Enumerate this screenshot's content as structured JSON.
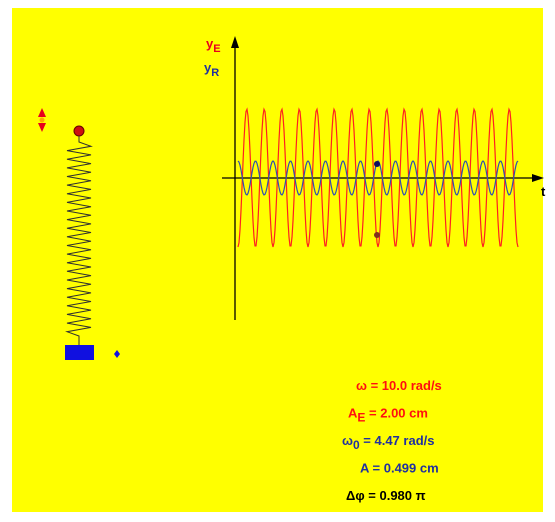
{
  "axes": {
    "y_e": {
      "base": "y",
      "sub": "E"
    },
    "y_r": {
      "base": "y",
      "sub": "R"
    },
    "t": "t"
  },
  "readouts": [
    {
      "base": "ω",
      "rest": " = 10.0 rad/s"
    },
    {
      "base": "A",
      "sub": "E",
      "rest": " = 2.00 cm"
    },
    {
      "base": "ω",
      "sub": "0",
      "rest": " = 4.47 rad/s"
    },
    {
      "base": "A",
      "rest": " = 0.499 cm"
    },
    {
      "base": "Δφ",
      "rest": " = 0.980 π"
    }
  ]
}
